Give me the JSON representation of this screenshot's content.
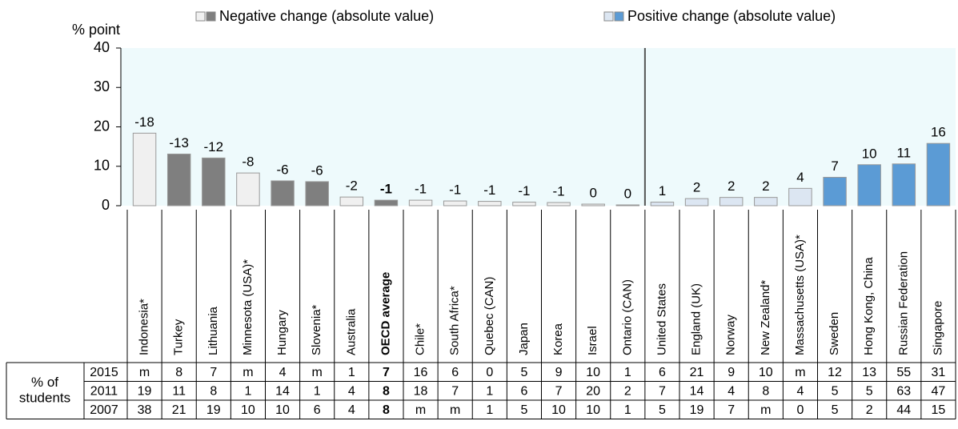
{
  "chart_data": {
    "type": "bar",
    "y_label": "% point",
    "legend": [
      {
        "label": "Negative change (absolute value)",
        "colors": [
          "#f0f0f0",
          "#7f7f7f"
        ]
      },
      {
        "label": "Positive change (absolute value)",
        "colors": [
          "#dce6f2",
          "#5b9bd5"
        ]
      }
    ],
    "categories": [
      "Indonesia*",
      "Turkey",
      "Lithuania",
      "Minnesota (USA)*",
      "Hungary",
      "Slovenia*",
      "Australia",
      "OECD average",
      "Chile*",
      "South Africa*",
      "Quebec (CAN)",
      "Japan",
      "Korea",
      "Israel",
      "Ontario (CAN)",
      "United States",
      "England (UK)",
      "Norway",
      "New Zealand*",
      "Massachusetts (USA)*",
      "Sweden",
      "Hong Kong, China",
      "Russian Federation",
      "Singapore"
    ],
    "values": [
      18.4,
      13.1,
      12.1,
      8.3,
      6.3,
      6.1,
      2.2,
      1.4,
      1.4,
      1.2,
      1.1,
      0.9,
      0.8,
      0.4,
      0.2,
      0.9,
      1.8,
      2.1,
      2.1,
      4.4,
      7.2,
      10.4,
      10.6,
      15.8
    ],
    "value_labels": [
      "-18",
      "-13",
      "-12",
      "-8",
      "-6",
      "-6",
      "-2",
      "-1",
      "-1",
      "-1",
      "-1",
      "-1",
      "-1",
      "0",
      "0",
      "1",
      "2",
      "2",
      "2",
      "4",
      "7",
      "10",
      "11",
      "16"
    ],
    "colors": [
      "#f0f0f0",
      "#7f7f7f",
      "#7f7f7f",
      "#f0f0f0",
      "#7f7f7f",
      "#7f7f7f",
      "#f0f0f0",
      "#7f7f7f",
      "#f0f0f0",
      "#f0f0f0",
      "#f0f0f0",
      "#f0f0f0",
      "#f0f0f0",
      "#f0f0f0",
      "#f0f0f0",
      "#dce6f2",
      "#dce6f2",
      "#dce6f2",
      "#dce6f2",
      "#dce6f2",
      "#5b9bd5",
      "#5b9bd5",
      "#5b9bd5",
      "#5b9bd5"
    ],
    "bold_index": 7,
    "ylim": [
      0,
      40
    ],
    "yticks": [
      0,
      10,
      20,
      30,
      40
    ],
    "background": "#eefafc",
    "table": {
      "row_header": "% of students",
      "rows": [
        {
          "year": "2015",
          "values": [
            "m",
            "8",
            "7",
            "m",
            "4",
            "m",
            "1",
            "7",
            "16",
            "6",
            "0",
            "5",
            "9",
            "10",
            "1",
            "6",
            "21",
            "9",
            "10",
            "m",
            "12",
            "13",
            "55",
            "31"
          ]
        },
        {
          "year": "2011",
          "values": [
            "19",
            "11",
            "8",
            "1",
            "14",
            "1",
            "4",
            "8",
            "18",
            "7",
            "1",
            "6",
            "7",
            "20",
            "2",
            "7",
            "14",
            "4",
            "8",
            "4",
            "5",
            "5",
            "63",
            "47"
          ]
        },
        {
          "year": "2007",
          "values": [
            "38",
            "21",
            "19",
            "10",
            "10",
            "6",
            "4",
            "8",
            "m",
            "m",
            "1",
            "5",
            "10",
            "10",
            "1",
            "5",
            "19",
            "7",
            "m",
            "0",
            "5",
            "2",
            "44",
            "15"
          ]
        }
      ]
    }
  }
}
